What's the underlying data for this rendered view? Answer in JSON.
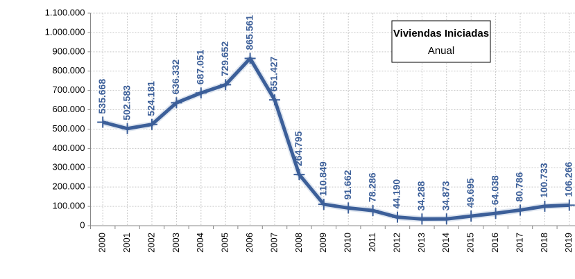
{
  "chart_data": {
    "type": "line",
    "title": "Viviendas Iniciadas",
    "subtitle": "Anual",
    "categories": [
      "2000",
      "2001",
      "2002",
      "2003",
      "2004",
      "2005",
      "2006",
      "2007",
      "2008",
      "2009",
      "2010",
      "2011",
      "2012",
      "2013",
      "2014",
      "2015",
      "2016",
      "2017",
      "2018",
      "2019"
    ],
    "series": [
      {
        "name": "Viviendas Iniciadas",
        "color": "#3c5f99",
        "values": [
          535668,
          502583,
          524181,
          636332,
          687051,
          729652,
          865561,
          651427,
          264795,
          110849,
          91662,
          78286,
          44190,
          34288,
          34873,
          49695,
          64038,
          80786,
          100733,
          106266
        ],
        "value_labels": [
          "535.668",
          "502.583",
          "524.181",
          "636.332",
          "687.051",
          "729.652",
          "865.561",
          "651.427",
          "264.795",
          "110.849",
          "91.662",
          "78.286",
          "44.190",
          "34.288",
          "34.873",
          "49.695",
          "64.038",
          "80.786",
          "100.733",
          "106.266"
        ]
      }
    ],
    "ylim": [
      0,
      1100000
    ],
    "yticks": [
      {
        "value": 0,
        "label": "0"
      },
      {
        "value": 100000,
        "label": "100.000"
      },
      {
        "value": 200000,
        "label": "200.000"
      },
      {
        "value": 300000,
        "label": "300.000"
      },
      {
        "value": 400000,
        "label": "400.000"
      },
      {
        "value": 500000,
        "label": "500.000"
      },
      {
        "value": 600000,
        "label": "600.000"
      },
      {
        "value": 700000,
        "label": "700.000"
      },
      {
        "value": 800000,
        "label": "800.000"
      },
      {
        "value": 900000,
        "label": "900.000"
      },
      {
        "value": 1000000,
        "label": "1.000.000"
      },
      {
        "value": 1100000,
        "label": "1.100.000"
      }
    ],
    "grid": true
  }
}
